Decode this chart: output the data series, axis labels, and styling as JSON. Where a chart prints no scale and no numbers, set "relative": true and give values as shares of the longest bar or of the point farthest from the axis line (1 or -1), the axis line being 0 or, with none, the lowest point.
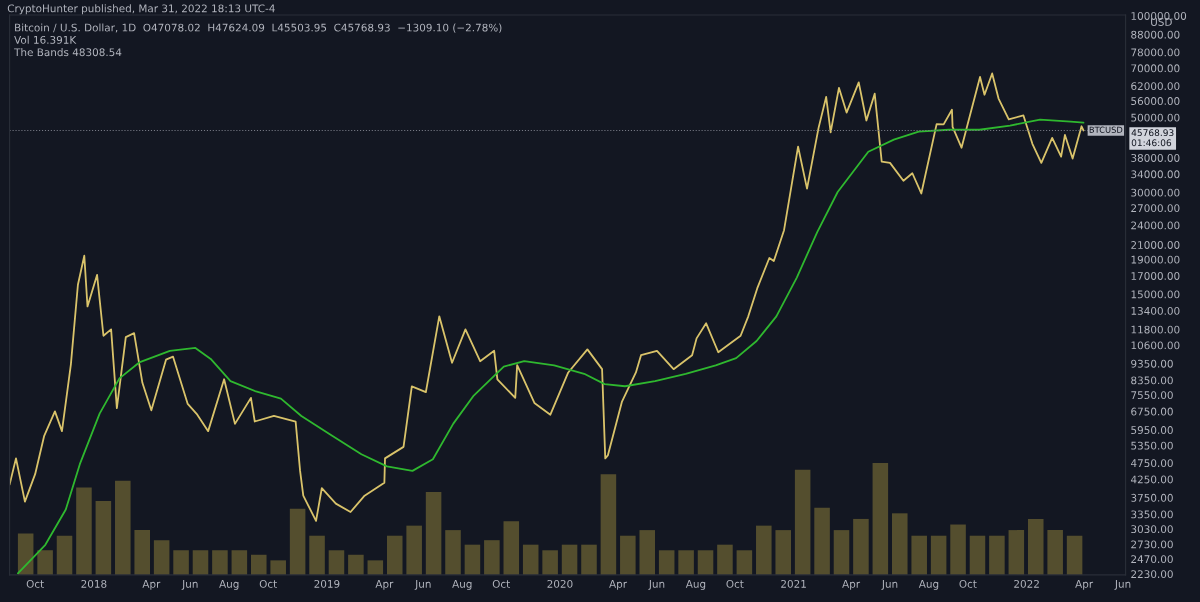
{
  "chart_data": [
    {
      "type": "line",
      "title": "Bitcoin / U.S. Dollar, 1D  O47078.02  H47624.09  L45503.95  C45768.93  −1309.10 (−2.78%)",
      "subtitle": "CryptoHunter published, Mar 31, 2022 18:13 UTC-4",
      "ylabel": "USD",
      "annotations": [
        "Vol 16.391K",
        "The Bands 48308.54",
        "45768.93\n01:46:06"
      ],
      "log": true,
      "ylim": [
        2215,
        100500
      ],
      "xlim": [
        "2017-08-22",
        "2022-06-05"
      ],
      "yticks": [
        {
          "value": 100000,
          "label": "100000.00"
        },
        {
          "value": 88000,
          "label": "88000.00"
        },
        {
          "value": 78000,
          "label": "78000.00"
        },
        {
          "value": 70000,
          "label": "70000.00"
        },
        {
          "value": 62000,
          "label": "62000.00"
        },
        {
          "value": 56000,
          "label": "56000.00"
        },
        {
          "value": 50000,
          "label": "50000.00"
        },
        {
          "value": 38000,
          "label": "38000.00"
        },
        {
          "value": 34000,
          "label": "34000.00"
        },
        {
          "value": 30000,
          "label": "30000.00"
        },
        {
          "value": 27000,
          "label": "27000.00"
        },
        {
          "value": 24000,
          "label": "24000.00"
        },
        {
          "value": 21000,
          "label": "21000.00"
        },
        {
          "value": 19000,
          "label": "19000.00"
        },
        {
          "value": 17000,
          "label": "17000.00"
        },
        {
          "value": 15000,
          "label": "15000.00"
        },
        {
          "value": 13400,
          "label": "13400.00"
        },
        {
          "value": 11800,
          "label": "11800.00"
        },
        {
          "value": 10600,
          "label": "10600.00"
        },
        {
          "value": 9350,
          "label": "9350.00"
        },
        {
          "value": 8350,
          "label": "8350.00"
        },
        {
          "value": 7550,
          "label": "7550.00"
        },
        {
          "value": 6750,
          "label": "6750.00"
        },
        {
          "value": 5950,
          "label": "5950.00"
        },
        {
          "value": 5350,
          "label": "5350.00"
        },
        {
          "value": 4750,
          "label": "4750.00"
        },
        {
          "value": 4250,
          "label": "4250.00"
        },
        {
          "value": 3750,
          "label": "3750.00"
        },
        {
          "value": 3350,
          "label": "3350.00"
        },
        {
          "value": 3030,
          "label": "3030.00"
        },
        {
          "value": 2730,
          "label": "2730.00"
        },
        {
          "value": 2470,
          "label": "2470.00"
        },
        {
          "value": 2230,
          "label": "2230.00"
        }
      ],
      "xticks": [
        {
          "value": "2017-10-01",
          "label": "Oct"
        },
        {
          "value": "2018-01-01",
          "label": "2018"
        },
        {
          "value": "2018-04-01",
          "label": "Apr"
        },
        {
          "value": "2018-06-01",
          "label": "Jun"
        },
        {
          "value": "2018-08-01",
          "label": "Aug"
        },
        {
          "value": "2018-10-01",
          "label": "Oct"
        },
        {
          "value": "2019-01-01",
          "label": "2019"
        },
        {
          "value": "2019-04-01",
          "label": "Apr"
        },
        {
          "value": "2019-06-01",
          "label": "Jun"
        },
        {
          "value": "2019-08-01",
          "label": "Aug"
        },
        {
          "value": "2019-10-01",
          "label": "Oct"
        },
        {
          "value": "2020-01-01",
          "label": "2020"
        },
        {
          "value": "2020-04-01",
          "label": "Apr"
        },
        {
          "value": "2020-06-01",
          "label": "Jun"
        },
        {
          "value": "2020-08-01",
          "label": "Aug"
        },
        {
          "value": "2020-10-01",
          "label": "Oct"
        },
        {
          "value": "2021-01-01",
          "label": "2021"
        },
        {
          "value": "2021-04-01",
          "label": "Apr"
        },
        {
          "value": "2021-06-01",
          "label": "Jun"
        },
        {
          "value": "2021-08-01",
          "label": "Aug"
        },
        {
          "value": "2021-10-01",
          "label": "Oct"
        },
        {
          "value": "2022-01-01",
          "label": "2022"
        },
        {
          "value": "2022-04-01",
          "label": "Apr"
        },
        {
          "value": "2022-06-01",
          "label": "Jun"
        }
      ],
      "ref_lines": [
        {
          "axis": "y",
          "value": 45768.93,
          "label": "BTCUSD",
          "color": "#787b86",
          "line_style": "dotted"
        }
      ],
      "series": [
        {
          "color": "#d9c36a",
          "x": [
            "2017-08-22",
            "2017-09-01",
            "2017-09-15",
            "2017-10-01",
            "2017-10-15",
            "2017-11-01",
            "2017-11-12",
            "2017-11-26",
            "2017-12-07",
            "2017-12-17",
            "2017-12-22",
            "2018-01-06",
            "2018-01-16",
            "2018-01-28",
            "2018-02-06",
            "2018-02-20",
            "2018-03-05",
            "2018-03-18",
            "2018-04-01",
            "2018-04-24",
            "2018-05-05",
            "2018-05-28",
            "2018-06-12",
            "2018-06-29",
            "2018-07-24",
            "2018-08-10",
            "2018-09-04",
            "2018-09-10",
            "2018-10-10",
            "2018-11-13",
            "2018-11-20",
            "2018-11-25",
            "2018-12-15",
            "2018-12-24",
            "2019-01-15",
            "2019-02-07",
            "2019-03-01",
            "2019-04-01",
            "2019-04-02",
            "2019-05-01",
            "2019-05-14",
            "2019-06-05",
            "2019-06-26",
            "2019-07-16",
            "2019-08-06",
            "2019-08-29",
            "2019-09-20",
            "2019-09-25",
            "2019-10-23",
            "2019-10-26",
            "2019-11-22",
            "2019-12-17",
            "2020-01-14",
            "2020-02-13",
            "2020-03-07",
            "2020-03-12",
            "2020-03-16",
            "2020-04-07",
            "2020-04-29",
            "2020-05-07",
            "2020-06-01",
            "2020-06-27",
            "2020-07-26",
            "2020-08-02",
            "2020-08-17",
            "2020-09-05",
            "2020-10-10",
            "2020-10-22",
            "2020-11-05",
            "2020-11-24",
            "2020-12-01",
            "2020-12-17",
            "2021-01-08",
            "2021-01-22",
            "2021-02-09",
            "2021-02-21",
            "2021-02-28",
            "2021-03-13",
            "2021-03-25",
            "2021-04-13",
            "2021-04-25",
            "2021-05-08",
            "2021-05-19",
            "2021-06-01",
            "2021-06-22",
            "2021-07-06",
            "2021-07-20",
            "2021-08-13",
            "2021-08-24",
            "2021-09-06",
            "2021-09-07",
            "2021-09-21",
            "2021-10-01",
            "2021-10-20",
            "2021-10-27",
            "2021-11-08",
            "2021-11-18",
            "2021-12-04",
            "2021-12-27",
            "2022-01-10",
            "2022-01-24",
            "2022-02-10",
            "2022-02-24",
            "2022-03-02",
            "2022-03-14",
            "2022-03-28",
            "2022-03-31"
          ],
          "values": [
            4100,
            4900,
            3650,
            4400,
            5700,
            6750,
            5900,
            9300,
            16000,
            19500,
            13800,
            17100,
            11300,
            11800,
            6900,
            11200,
            11500,
            8200,
            6800,
            9600,
            9800,
            7100,
            6600,
            5900,
            8400,
            6200,
            7400,
            6300,
            6550,
            6300,
            4500,
            3800,
            3200,
            4000,
            3600,
            3400,
            3800,
            4150,
            4900,
            5300,
            8000,
            7700,
            12900,
            9400,
            11800,
            9500,
            10200,
            8400,
            7400,
            9250,
            7150,
            6600,
            8800,
            10300,
            9000,
            4900,
            5000,
            7200,
            8800,
            9900,
            10200,
            9000,
            9900,
            11100,
            12300,
            10100,
            11300,
            12900,
            15600,
            19200,
            18800,
            23200,
            41000,
            30800,
            46500,
            57500,
            45200,
            61200,
            51700,
            63500,
            49000,
            58800,
            37000,
            36700,
            32500,
            34200,
            29800,
            47800,
            47700,
            52700,
            46900,
            40700,
            48100,
            65900,
            58400,
            67500,
            56900,
            49400,
            50700,
            41800,
            36700,
            43500,
            38300,
            44400,
            37800,
            47100,
            45769
          ]
        },
        {
          "color": "#2fb82f",
          "x": [
            "2017-09-04",
            "2017-10-17",
            "2017-11-18",
            "2017-12-10",
            "2018-01-10",
            "2018-02-10",
            "2018-03-13",
            "2018-04-30",
            "2018-06-09",
            "2018-07-03",
            "2018-08-03",
            "2018-09-12",
            "2018-10-21",
            "2018-11-22",
            "2019-01-08",
            "2019-02-24",
            "2019-04-05",
            "2019-05-15",
            "2019-06-16",
            "2019-07-18",
            "2019-08-19",
            "2019-10-05",
            "2019-11-06",
            "2019-12-23",
            "2020-02-08",
            "2020-03-11",
            "2020-04-12",
            "2020-05-29",
            "2020-07-16",
            "2020-09-01",
            "2020-10-03",
            "2020-11-04",
            "2020-12-05",
            "2021-01-06",
            "2021-02-07",
            "2021-03-11",
            "2021-04-28",
            "2021-06-07",
            "2021-07-16",
            "2021-09-01",
            "2021-10-19",
            "2021-12-06",
            "2022-01-22",
            "2022-03-11",
            "2022-03-31"
          ],
          "values": [
            2240,
            2720,
            3460,
            4710,
            6650,
            8450,
            9420,
            10200,
            10400,
            9650,
            8300,
            7730,
            7360,
            6540,
            5740,
            5040,
            4640,
            4500,
            4870,
            6210,
            7520,
            9160,
            9500,
            9230,
            8720,
            8130,
            8010,
            8300,
            8720,
            9230,
            9700,
            10900,
            12900,
            16800,
            22900,
            30100,
            39600,
            43000,
            45400,
            46000,
            46000,
            47300,
            49300,
            48600,
            48300
          ]
        }
      ]
    },
    {
      "type": "bar",
      "relative": true,
      "tick_labels": false,
      "categories": [
        null,
        null,
        null,
        null,
        null,
        null,
        null,
        null,
        null,
        null,
        null,
        null,
        null,
        null,
        null,
        null,
        null,
        null,
        null,
        null,
        null,
        null,
        null,
        null,
        null,
        null,
        null,
        null,
        null,
        null,
        null,
        null,
        null,
        null,
        null,
        null,
        null,
        null,
        null,
        null,
        null,
        null,
        null,
        null,
        null,
        null,
        null,
        null,
        null,
        null,
        null,
        null,
        null,
        null,
        null
      ],
      "values": [
        0.37,
        0.22,
        0.35,
        0.78,
        0.66,
        0.84,
        0.4,
        0.31,
        0.22,
        0.22,
        0.22,
        0.22,
        0.18,
        0.13,
        0.59,
        0.35,
        0.22,
        0.18,
        0.13,
        0.35,
        0.44,
        0.74,
        0.4,
        0.27,
        0.31,
        0.48,
        0.27,
        0.22,
        0.27,
        0.27,
        0.9,
        0.35,
        0.4,
        0.22,
        0.22,
        0.22,
        0.27,
        0.22,
        0.44,
        0.4,
        0.94,
        0.6,
        0.4,
        0.5,
        1.0,
        0.55,
        0.35,
        0.35,
        0.45,
        0.35,
        0.35,
        0.4,
        0.5,
        0.4,
        0.35
      ],
      "color": "#6b6133"
    }
  ]
}
